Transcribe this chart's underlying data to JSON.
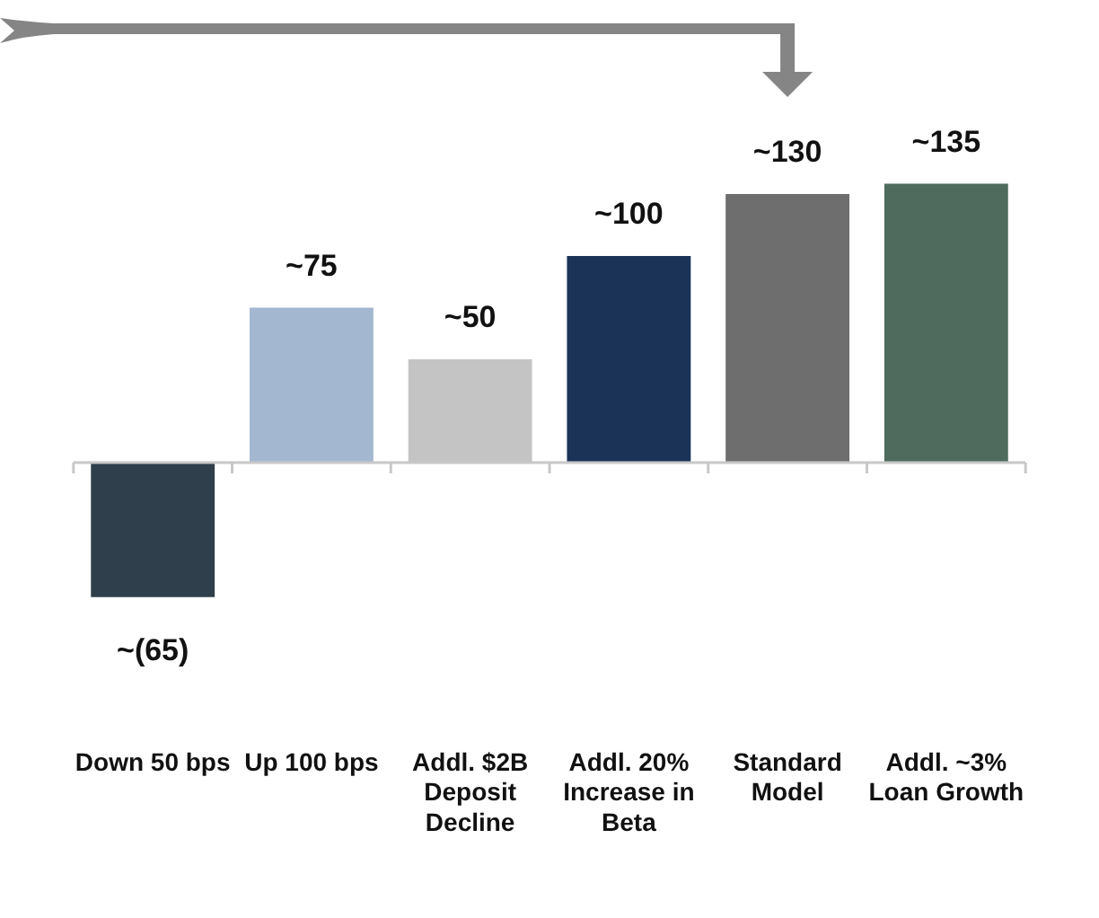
{
  "chart_data": {
    "type": "bar",
    "categories": [
      "Down 50 bps",
      "Up 100 bps",
      "Addl. $2B Deposit Decline",
      "Addl. 20% Increase in Beta",
      "Standard Model",
      "Addl. ~3% Loan Growth"
    ],
    "values": [
      -65,
      75,
      50,
      100,
      130,
      135
    ],
    "value_labels": [
      "~(65)",
      "~75",
      "~50",
      "~100",
      "~130",
      "~135"
    ],
    "colors": [
      "#2f3f4b",
      "#a3b8d0",
      "#c4c4c4",
      "#1c3358",
      "#6e6e6e",
      "#4f6b5e"
    ],
    "grid": false,
    "legend": false
  }
}
